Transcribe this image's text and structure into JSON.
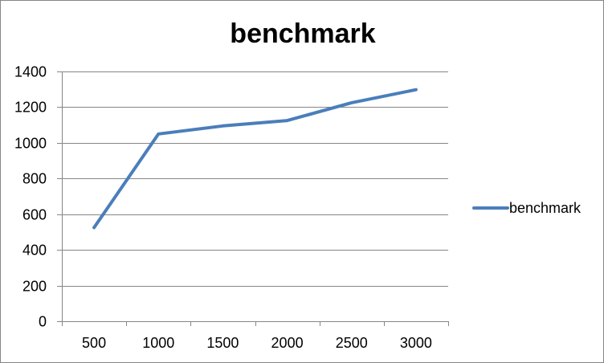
{
  "chart_data": {
    "type": "line",
    "title": "benchmark",
    "xlabel": "",
    "ylabel": "",
    "categories": [
      "500",
      "1000",
      "1500",
      "2000",
      "2500",
      "3000"
    ],
    "series": [
      {
        "name": "benchmark",
        "values": [
          525,
          1050,
          1095,
          1125,
          1225,
          1298
        ],
        "color": "#4a7ebb"
      }
    ],
    "ylim": [
      0,
      1400
    ],
    "yticks": [
      0,
      200,
      400,
      600,
      800,
      1000,
      1200,
      1400
    ],
    "grid": true,
    "legend": "right"
  }
}
